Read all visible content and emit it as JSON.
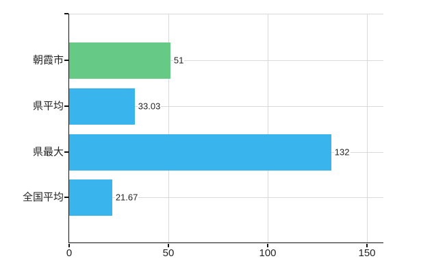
{
  "chart_data": {
    "type": "bar",
    "orientation": "horizontal",
    "title": "",
    "legend": "none",
    "grid": "on",
    "categories": [
      "朝霞市",
      "県平均",
      "県最大",
      "全国平均"
    ],
    "values": [
      51,
      33.03,
      132,
      21.67
    ],
    "value_labels": [
      "51",
      "33.03",
      "132",
      "21.67"
    ],
    "series_colors": [
      "#67c986",
      "#3ab4ec",
      "#3ab4ec",
      "#3ab4ec"
    ],
    "x_ticks": [
      0,
      50,
      100,
      150
    ],
    "x_tick_labels": [
      "0",
      "50",
      "100",
      "150"
    ],
    "xlim": [
      0,
      158.3
    ],
    "axis_color": "#111111",
    "grid_color": "#d9d9d9",
    "text_color": "#222222",
    "background_color": "#ffffff"
  }
}
